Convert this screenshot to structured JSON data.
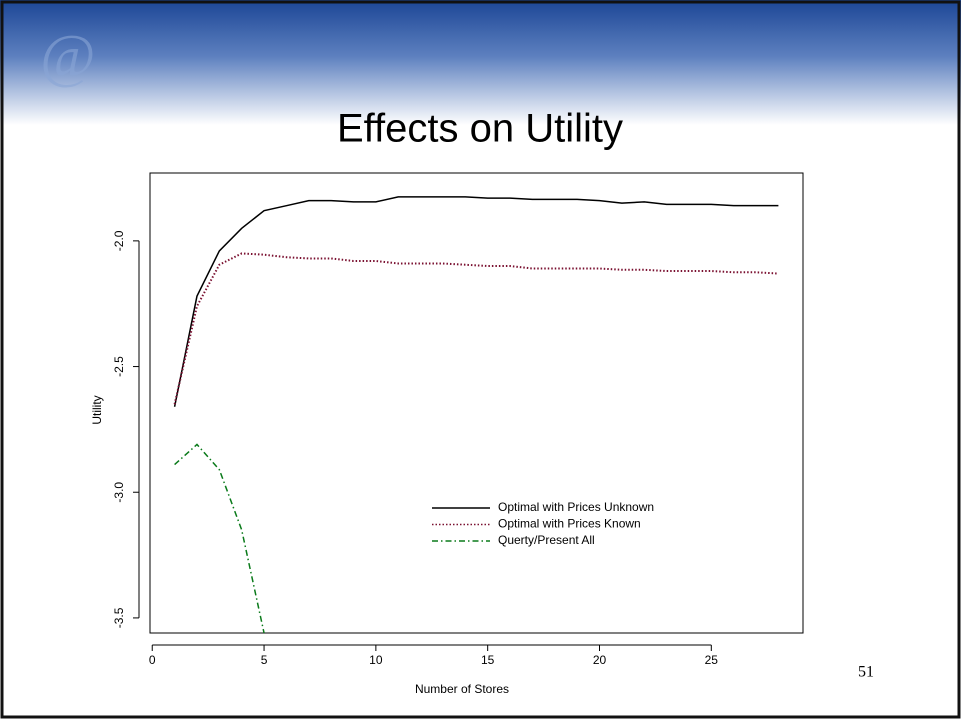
{
  "chart_data": {
    "type": "line",
    "title": "Effects on Utility",
    "x_label": "Number of Stores",
    "y_label": "Utility",
    "x": [
      1,
      2,
      3,
      4,
      5,
      6,
      7,
      8,
      9,
      10,
      11,
      12,
      13,
      14,
      15,
      16,
      17,
      18,
      19,
      20,
      21,
      22,
      23,
      24,
      25,
      26,
      27,
      28
    ],
    "xlim": [
      -0.1,
      29.1
    ],
    "xticks": [
      0,
      5,
      10,
      15,
      20,
      25
    ],
    "ylim": [
      -3.56,
      -1.73
    ],
    "yticks": [
      {
        "value": -3.5,
        "label": "-3.5"
      },
      {
        "value": -3,
        "label": "-3.0"
      },
      -2.5,
      {
        "value": -2,
        "label": "-2.0"
      }
    ],
    "series": [
      {
        "name": "Optimal with Prices Unknown",
        "color": "#000000",
        "line_style": "solid",
        "values": [
          -2.66,
          -2.22,
          -2.04,
          -1.95,
          -1.88,
          -1.86,
          -1.84,
          -1.84,
          -1.845,
          -1.845,
          -1.825,
          -1.825,
          -1.825,
          -1.825,
          -1.83,
          -1.83,
          -1.835,
          -1.835,
          -1.835,
          -1.84,
          -1.85,
          -1.845,
          -1.855,
          -1.855,
          -1.855,
          -1.86,
          -1.86,
          -1.86
        ]
      },
      {
        "name": "Optimal with Prices Known",
        "color": "#7a1030",
        "line_style": "dotted",
        "values": [
          -2.65,
          -2.26,
          -2.095,
          -2.05,
          -2.055,
          -2.065,
          -2.07,
          -2.07,
          -2.08,
          -2.08,
          -2.09,
          -2.09,
          -2.09,
          -2.095,
          -2.1,
          -2.1,
          -2.11,
          -2.11,
          -2.11,
          -2.11,
          -2.115,
          -2.115,
          -2.12,
          -2.12,
          -2.12,
          -2.125,
          -2.125,
          -2.13
        ]
      },
      {
        "name": "Querty/Present All",
        "color": "#0a7a1a",
        "line_style": "dashdot",
        "values": [
          -2.89,
          -2.81,
          -2.91,
          -3.15,
          -3.56,
          null,
          null,
          null,
          null,
          null,
          null,
          null,
          null,
          null,
          null,
          null,
          null,
          null,
          null,
          null,
          null,
          null,
          null,
          null,
          null,
          null,
          null,
          null
        ]
      }
    ]
  },
  "slide_number": "51"
}
